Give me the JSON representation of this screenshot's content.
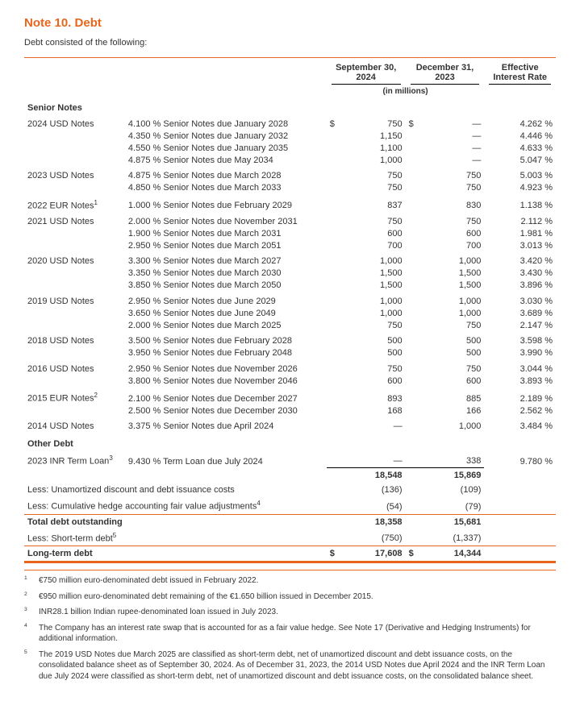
{
  "title": "Note 10. Debt",
  "intro": "Debt consisted of the following:",
  "headers": {
    "col1": "September 30, 2024",
    "col2": "December 31, 2023",
    "col3": "Effective Interest Rate",
    "inMillions": "(in millions)"
  },
  "sections": [
    {
      "heading": "Senior Notes",
      "groups": [
        {
          "label": "2024 USD Notes",
          "rows": [
            {
              "rate": "4.100 %",
              "desc": "Senior Notes due January 2028",
              "cur1": "$",
              "a1": "750",
              "cur2": "$",
              "a2": "—",
              "eir": "4.262 %"
            },
            {
              "rate": "4.350 %",
              "desc": "Senior Notes due January 2032",
              "a1": "1,150",
              "a2": "—",
              "eir": "4.446 %"
            },
            {
              "rate": "4.550 %",
              "desc": "Senior Notes due January 2035",
              "a1": "1,100",
              "a2": "—",
              "eir": "4.633 %"
            },
            {
              "rate": "4.875 %",
              "desc": "Senior Notes due May 2034",
              "a1": "1,000",
              "a2": "—",
              "eir": "5.047 %"
            }
          ]
        },
        {
          "label": "2023 USD Notes",
          "rows": [
            {
              "rate": "4.875 %",
              "desc": "Senior Notes due March 2028",
              "a1": "750",
              "a2": "750",
              "eir": "5.003 %"
            },
            {
              "rate": "4.850 %",
              "desc": "Senior Notes due March 2033",
              "a1": "750",
              "a2": "750",
              "eir": "4.923 %"
            }
          ]
        },
        {
          "label": "2022 EUR Notes",
          "sup": "1",
          "rows": [
            {
              "rate": "1.000 %",
              "desc": "Senior Notes due February 2029",
              "a1": "837",
              "a2": "830",
              "eir": "1.138 %"
            }
          ]
        },
        {
          "label": "2021 USD Notes",
          "rows": [
            {
              "rate": "2.000 %",
              "desc": "Senior Notes due November 2031",
              "a1": "750",
              "a2": "750",
              "eir": "2.112 %"
            },
            {
              "rate": "1.900 %",
              "desc": "Senior Notes due March 2031",
              "a1": "600",
              "a2": "600",
              "eir": "1.981 %"
            },
            {
              "rate": "2.950 %",
              "desc": "Senior Notes due March 2051",
              "a1": "700",
              "a2": "700",
              "eir": "3.013 %"
            }
          ]
        },
        {
          "label": "2020 USD Notes",
          "rows": [
            {
              "rate": "3.300 %",
              "desc": "Senior Notes due March 2027",
              "a1": "1,000",
              "a2": "1,000",
              "eir": "3.420 %"
            },
            {
              "rate": "3.350 %",
              "desc": "Senior Notes due March 2030",
              "a1": "1,500",
              "a2": "1,500",
              "eir": "3.430 %"
            },
            {
              "rate": "3.850 %",
              "desc": "Senior Notes due March 2050",
              "a1": "1,500",
              "a2": "1,500",
              "eir": "3.896 %"
            }
          ]
        },
        {
          "label": "2019 USD Notes",
          "rows": [
            {
              "rate": "2.950 %",
              "desc": "Senior Notes due June 2029",
              "a1": "1,000",
              "a2": "1,000",
              "eir": "3.030 %"
            },
            {
              "rate": "3.650 %",
              "desc": "Senior Notes due June 2049",
              "a1": "1,000",
              "a2": "1,000",
              "eir": "3.689 %"
            },
            {
              "rate": "2.000 %",
              "desc": "Senior Notes due March 2025",
              "a1": "750",
              "a2": "750",
              "eir": "2.147 %"
            }
          ]
        },
        {
          "label": "2018 USD Notes",
          "rows": [
            {
              "rate": "3.500 %",
              "desc": "Senior Notes due February 2028",
              "a1": "500",
              "a2": "500",
              "eir": "3.598 %"
            },
            {
              "rate": "3.950 %",
              "desc": "Senior Notes due February 2048",
              "a1": "500",
              "a2": "500",
              "eir": "3.990 %"
            }
          ]
        },
        {
          "label": "2016 USD Notes",
          "rows": [
            {
              "rate": "2.950 %",
              "desc": "Senior Notes due November 2026",
              "a1": "750",
              "a2": "750",
              "eir": "3.044 %"
            },
            {
              "rate": "3.800 %",
              "desc": "Senior Notes due November 2046",
              "a1": "600",
              "a2": "600",
              "eir": "3.893 %"
            }
          ]
        },
        {
          "label": "2015 EUR Notes",
          "sup": "2",
          "rows": [
            {
              "rate": "2.100 %",
              "desc": "Senior Notes due December 2027",
              "a1": "893",
              "a2": "885",
              "eir": "2.189 %"
            },
            {
              "rate": "2.500 %",
              "desc": "Senior Notes due December 2030",
              "a1": "168",
              "a2": "166",
              "eir": "2.562 %"
            }
          ]
        },
        {
          "label": "2014 USD Notes",
          "rows": [
            {
              "rate": "3.375 %",
              "desc": "Senior Notes due April 2024",
              "a1": "—",
              "a2": "1,000",
              "eir": "3.484 %"
            }
          ]
        }
      ]
    },
    {
      "heading": "Other Debt",
      "groups": [
        {
          "label": "2023 INR Term Loan",
          "sup": "3",
          "rows": [
            {
              "rate": "9.430 %",
              "desc": "Term Loan due July 2024",
              "a1": "—",
              "a2": "338",
              "eir": "9.780 %"
            }
          ]
        }
      ]
    }
  ],
  "summary": [
    {
      "label": "",
      "a1": "18,548",
      "a2": "15,869",
      "topBorder": true,
      "bold": true
    },
    {
      "label": "Less: Unamortized discount and debt issuance costs",
      "a1": "(136)",
      "a2": "(109)"
    },
    {
      "label": "Less: Cumulative hedge accounting fair value adjustments",
      "sup": "4",
      "a1": "(54)",
      "a2": "(79)",
      "orangeUnder": true
    },
    {
      "label": "Total debt outstanding",
      "a1": "18,358",
      "a2": "15,681",
      "bold": true
    },
    {
      "label": "Less: Short-term debt",
      "sup": "5",
      "a1": "(750)",
      "a2": "(1,337)",
      "orangeUnder": true
    },
    {
      "label": "Long-term debt",
      "cur1": "$",
      "a1": "17,608",
      "cur2": "$",
      "a2": "14,344",
      "bold": true,
      "orangeThick": true
    }
  ],
  "footnotes": [
    {
      "n": "1",
      "t": "€750 million euro-denominated debt issued in February 2022."
    },
    {
      "n": "2",
      "t": "€950 million euro-denominated debt remaining of the €1.650 billion issued in December 2015."
    },
    {
      "n": "3",
      "t": "INR28.1 billion Indian rupee-denominated loan issued in July 2023."
    },
    {
      "n": "4",
      "t": "The Company has an interest rate swap that is accounted for as a fair value hedge.  See Note 17 (Derivative and Hedging Instruments) for additional information."
    },
    {
      "n": "5",
      "t": "The 2019 USD Notes due March 2025 are classified as short-term debt, net of unamortized discount and debt issuance costs, on the consolidated balance sheet as of September 30, 2024.  As of December 31, 2023, the 2014 USD Notes due April 2024 and the INR Term Loan due July 2024 were classified as short-term debt, net of unamortized discount and debt issuance costs, on the consolidated balance sheet."
    }
  ]
}
